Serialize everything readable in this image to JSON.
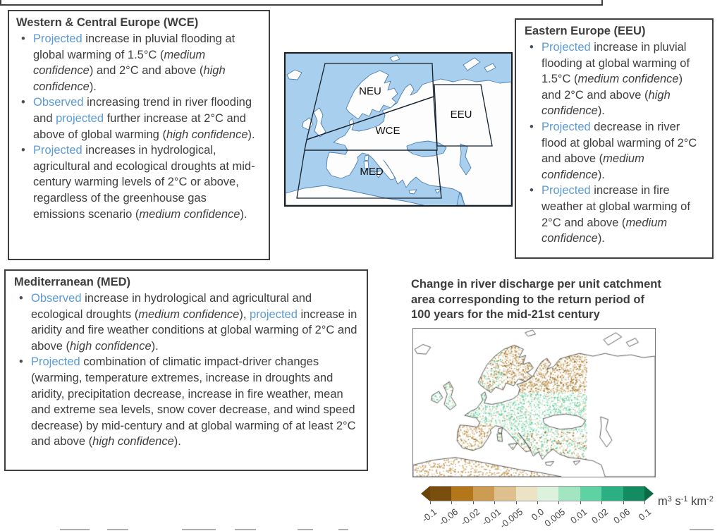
{
  "colors": {
    "accent_blue": "#5b9bd5",
    "text": "#3d3d3d",
    "ocean": "#a9cfee"
  },
  "bullet_char": "•",
  "panels": {
    "wce": {
      "title": "Western & Central Europe (WCE)",
      "bullets": [
        [
          [
            "a",
            "Projected"
          ],
          [
            "n",
            " increase in pluvial flooding at global warming of 1.5°C ("
          ],
          [
            "i",
            "medium confidence"
          ],
          [
            "n",
            ") and 2°C and above ("
          ],
          [
            "i",
            "high confidence"
          ],
          [
            "n",
            ")."
          ]
        ],
        [
          [
            "a",
            "Observed"
          ],
          [
            "n",
            " increasing trend in river flooding and "
          ],
          [
            "a",
            "projected"
          ],
          [
            "n",
            " further increase at 2°C and above of global warming ("
          ],
          [
            "i",
            "high confidence"
          ],
          [
            "n",
            ")."
          ]
        ],
        [
          [
            "a",
            "Projected"
          ],
          [
            "n",
            " increases in hydrological, agricultural and ecological droughts at mid-century warming levels of 2°C or above, regardless of the greenhouse gas emissions scenario ("
          ],
          [
            "i",
            "medium confidence"
          ],
          [
            "n",
            ")."
          ]
        ]
      ]
    },
    "eeu": {
      "title": "Eastern Europe (EEU)",
      "bullets": [
        [
          [
            "a",
            "Projected"
          ],
          [
            "n",
            " increase in pluvial flooding at global warming of 1.5°C ("
          ],
          [
            "i",
            "medium confidence"
          ],
          [
            "n",
            ") and 2°C and above ("
          ],
          [
            "i",
            "high confidence"
          ],
          [
            "n",
            ")."
          ]
        ],
        [
          [
            "a",
            "Projected"
          ],
          [
            "n",
            " decrease in river flood at global warming of 2°C and above ("
          ],
          [
            "i",
            "medium confidence"
          ],
          [
            "n",
            ")."
          ]
        ],
        [
          [
            "a",
            "Projected"
          ],
          [
            "n",
            " increase in fire weather at global warming of 2°C and above ("
          ],
          [
            "i",
            "medium confidence"
          ],
          [
            "n",
            ")."
          ]
        ]
      ]
    },
    "med": {
      "title": "Mediterranean (MED)",
      "bullets": [
        [
          [
            "a",
            "Observed"
          ],
          [
            "n",
            " increase in hydrological and agricultural and ecological droughts ("
          ],
          [
            "i",
            "medium confidence"
          ],
          [
            "n",
            "), "
          ],
          [
            "a",
            "projected"
          ],
          [
            "n",
            " increase in aridity and fire weather conditions at global warming of 2°C and above ("
          ],
          [
            "i",
            "high confidence"
          ],
          [
            "n",
            ")."
          ]
        ],
        [
          [
            "a",
            "Projected"
          ],
          [
            "n",
            " combination of climatic impact-driver changes (warming, temperature extremes, increase in droughts and aridity, precipitation decrease, increase in fire weather, mean and extreme sea levels, snow cover decrease, and wind speed decrease) by mid-century and at global warming of at least 2°C and above ("
          ],
          [
            "i",
            "high confidence"
          ],
          [
            "n",
            ")."
          ]
        ]
      ]
    }
  },
  "region_map": {
    "labels": {
      "neu": "NEU",
      "wce": "WCE",
      "eeu": "EEU",
      "med": "MED"
    }
  },
  "discharge": {
    "title": "Change in river discharge per unit catchment\narea corresponding to the return period of\n100 years for the mid-21st century",
    "colorbar": {
      "tick_labels": [
        "-0.1",
        "-0.06",
        "-0.02",
        "-0.01",
        "-0.005",
        "0.0",
        "0.005",
        "0.01",
        "0.02",
        "0.06",
        "0.1"
      ],
      "unit": [
        [
          "n",
          "m"
        ],
        [
          "sup",
          "3"
        ],
        [
          "n",
          " s"
        ],
        [
          "sup",
          "-1"
        ],
        [
          "n",
          " km"
        ],
        [
          "sup",
          "-2"
        ]
      ],
      "segment_colors": [
        "#7a4e0d",
        "#b3771a",
        "#cb9c52",
        "#ddc08d",
        "#ece2c4",
        "#ddf2dd",
        "#a3e5c0",
        "#5ed2a2",
        "#2bb084",
        "#128c60"
      ],
      "left_arrow_color": "#6a430b",
      "right_arrow_color": "#0c6a45"
    },
    "map_palette": {
      "greens": [
        "#66cb9e",
        "#8fdcb8",
        "#b9ecd4",
        "#49bd8b"
      ],
      "browns": [
        "#c0954f",
        "#a8782a",
        "#d6b984",
        "#8f6418"
      ],
      "pale": [
        "#e9e0c2",
        "#dff0dc"
      ]
    }
  }
}
